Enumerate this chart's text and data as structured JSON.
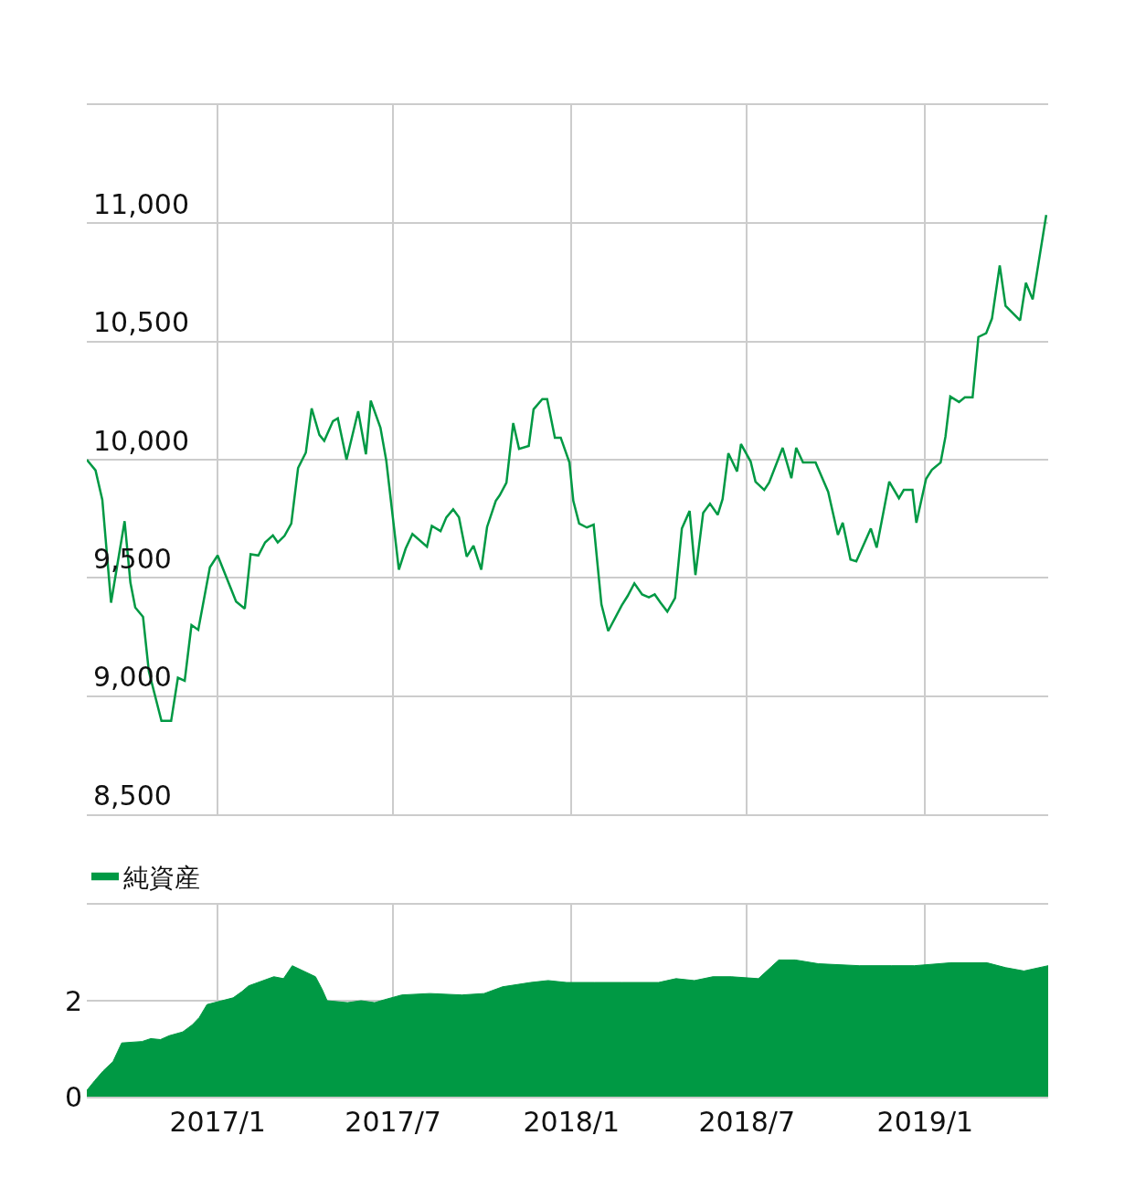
{
  "chart_data": [
    {
      "type": "line",
      "xlim": [
        "2016-08-19",
        "2019-05-08"
      ],
      "xticks": [
        {
          "value": "2017-01-01",
          "label": null
        },
        {
          "value": "2017-07-01",
          "label": null
        },
        {
          "value": "2018-01-01",
          "label": null
        },
        {
          "value": "2018-07-01",
          "label": null
        },
        {
          "value": "2019-01-01",
          "label": null
        }
      ],
      "ylim": [
        8500,
        11500
      ],
      "yticks": [
        {
          "value": 8500,
          "label": "8,500"
        },
        {
          "value": 9000,
          "label": "9,000"
        },
        {
          "value": 9500,
          "label": "9,500"
        },
        {
          "value": 10000,
          "label": "10,000"
        },
        {
          "value": 10500,
          "label": "10,500"
        },
        {
          "value": 11000,
          "label": "11,000"
        },
        {
          "value": 11500,
          "label": null
        }
      ],
      "grid": true,
      "tick_labels": "y",
      "series": [
        {
          "color": "#009944",
          "x": [
            "2016-08-19",
            "2016-08-28",
            "2016-09-04",
            "2016-09-13",
            "2016-09-27",
            "2016-10-03",
            "2016-10-08",
            "2016-10-16",
            "2016-10-22",
            "2016-11-04",
            "2016-11-14",
            "2016-11-21",
            "2016-11-28",
            "2016-12-05",
            "2016-12-12",
            "2016-12-24",
            "2017-01-01",
            "2017-01-20",
            "2017-01-29",
            "2017-02-04",
            "2017-02-12",
            "2017-02-19",
            "2017-02-27",
            "2017-03-04",
            "2017-03-11",
            "2017-03-18",
            "2017-03-25",
            "2017-04-02",
            "2017-04-08",
            "2017-04-16",
            "2017-04-21",
            "2017-04-30",
            "2017-05-05",
            "2017-05-14",
            "2017-05-26",
            "2017-06-03",
            "2017-06-08",
            "2017-06-18",
            "2017-06-24",
            "2017-07-07",
            "2017-07-14",
            "2017-07-21",
            "2017-08-05",
            "2017-08-10",
            "2017-08-19",
            "2017-08-25",
            "2017-09-01",
            "2017-09-07",
            "2017-09-15",
            "2017-09-22",
            "2017-09-30",
            "2017-10-06",
            "2017-10-15",
            "2017-10-19",
            "2017-10-26",
            "2017-11-02",
            "2017-11-08",
            "2017-11-18",
            "2017-11-23",
            "2017-12-02",
            "2017-12-07",
            "2017-12-15",
            "2017-12-21",
            "2017-12-30",
            "2018-01-03",
            "2018-01-09",
            "2018-01-17",
            "2018-01-24",
            "2018-02-01",
            "2018-02-08",
            "2018-02-22",
            "2018-02-28",
            "2018-03-07",
            "2018-03-15",
            "2018-03-22",
            "2018-03-28",
            "2018-04-03",
            "2018-04-10",
            "2018-04-18",
            "2018-04-25",
            "2018-05-03",
            "2018-05-09",
            "2018-05-17",
            "2018-05-24",
            "2018-06-01",
            "2018-06-06",
            "2018-06-12",
            "2018-06-21",
            "2018-06-25",
            "2018-07-05",
            "2018-07-10",
            "2018-07-19",
            "2018-07-24",
            "2018-08-07",
            "2018-08-16",
            "2018-08-21",
            "2018-08-28",
            "2018-09-10",
            "2018-09-23",
            "2018-10-03",
            "2018-10-08",
            "2018-10-16",
            "2018-10-22",
            "2018-11-06",
            "2018-11-12",
            "2018-11-25",
            "2018-12-05",
            "2018-12-10",
            "2018-12-19",
            "2018-12-23",
            "2019-01-02",
            "2019-01-08",
            "2019-01-17",
            "2019-01-22",
            "2019-01-27",
            "2019-02-05",
            "2019-02-11",
            "2019-02-19",
            "2019-02-25",
            "2019-03-05",
            "2019-03-11",
            "2019-03-19",
            "2019-03-25",
            "2019-04-09",
            "2019-04-15",
            "2019-04-22",
            "2019-05-06"
          ],
          "values": [
            10000,
            9955,
            9830,
            9395,
            9740,
            9480,
            9375,
            9335,
            9105,
            8895,
            8895,
            9078,
            9065,
            9300,
            9280,
            9545,
            9595,
            9400,
            9370,
            9600,
            9595,
            9650,
            9680,
            9650,
            9678,
            9730,
            9965,
            10030,
            10217,
            10105,
            10080,
            10163,
            10175,
            10000,
            10205,
            10023,
            10250,
            10135,
            9996,
            9535,
            9624,
            9686,
            9632,
            9720,
            9698,
            9756,
            9790,
            9756,
            9590,
            9636,
            9535,
            9715,
            9826,
            9849,
            9903,
            10155,
            10046,
            10058,
            10213,
            10256,
            10256,
            10093,
            10093,
            9988,
            9826,
            9730,
            9713,
            9725,
            9388,
            9275,
            9384,
            9423,
            9477,
            9430,
            9418,
            9430,
            9395,
            9357,
            9415,
            9709,
            9783,
            9512,
            9775,
            9814,
            9767,
            9833,
            10027,
            9950,
            10066,
            9992,
            9907,
            9872,
            9903,
            10050,
            9922,
            10050,
            9988,
            9988,
            9864,
            9682,
            9733,
            9578,
            9570,
            9709,
            9628,
            9907,
            9837,
            9872,
            9872,
            9733,
            9919,
            9957,
            9988,
            10097,
            10267,
            10244,
            10264,
            10264,
            10519,
            10535,
            10597,
            10822,
            10651,
            10589,
            10748,
            10678,
            11035
          ]
        }
      ]
    },
    {
      "type": "area",
      "xlim": [
        "2016-08-19",
        "2019-05-08"
      ],
      "xticks": [
        {
          "value": "2017-01-01",
          "label": "2017/1"
        },
        {
          "value": "2017-07-01",
          "label": "2017/7"
        },
        {
          "value": "2018-01-01",
          "label": "2018/1"
        },
        {
          "value": "2018-07-01",
          "label": "2018/7"
        },
        {
          "value": "2019-01-01",
          "label": "2019/1"
        }
      ],
      "ylim": [
        0,
        4
      ],
      "yticks": [
        0,
        2,
        {
          "value": 4,
          "label": null
        }
      ],
      "grid": true,
      "legend": "top left",
      "series": [
        {
          "name": "純資産",
          "color": "#009944",
          "x": [
            "2016-08-19",
            "2016-08-27",
            "2016-09-05",
            "2016-09-15",
            "2016-09-24",
            "2016-10-15",
            "2016-10-24",
            "2016-11-03",
            "2016-11-12",
            "2016-11-26",
            "2016-12-06",
            "2016-12-13",
            "2016-12-21",
            "2017-01-17",
            "2017-01-26",
            "2017-02-02",
            "2017-02-28",
            "2017-03-10",
            "2017-03-19",
            "2017-04-12",
            "2017-04-19",
            "2017-04-24",
            "2017-05-15",
            "2017-05-29",
            "2017-06-12",
            "2017-06-22",
            "2017-07-10",
            "2017-08-08",
            "2017-09-10",
            "2017-10-03",
            "2017-10-22",
            "2017-11-20",
            "2017-12-08",
            "2017-12-27",
            "2018-01-25",
            "2018-02-22",
            "2018-04-01",
            "2018-04-19",
            "2018-05-08",
            "2018-05-27",
            "2018-06-15",
            "2018-07-13",
            "2018-08-03",
            "2018-08-20",
            "2018-09-13",
            "2018-10-25",
            "2018-11-27",
            "2018-12-21",
            "2019-01-27",
            "2019-03-06",
            "2019-03-25",
            "2019-04-13",
            "2019-05-08"
          ],
          "values": [
            0.13,
            0.33,
            0.54,
            0.73,
            1.12,
            1.15,
            1.21,
            1.19,
            1.27,
            1.35,
            1.5,
            1.65,
            1.92,
            2.06,
            2.19,
            2.31,
            2.5,
            2.46,
            2.73,
            2.5,
            2.23,
            2.0,
            1.96,
            2.0,
            1.96,
            2.02,
            2.12,
            2.15,
            2.12,
            2.15,
            2.29,
            2.38,
            2.42,
            2.38,
            2.38,
            2.38,
            2.38,
            2.46,
            2.42,
            2.5,
            2.5,
            2.46,
            2.85,
            2.85,
            2.77,
            2.73,
            2.73,
            2.73,
            2.79,
            2.79,
            2.69,
            2.62,
            2.73
          ]
        }
      ]
    }
  ]
}
